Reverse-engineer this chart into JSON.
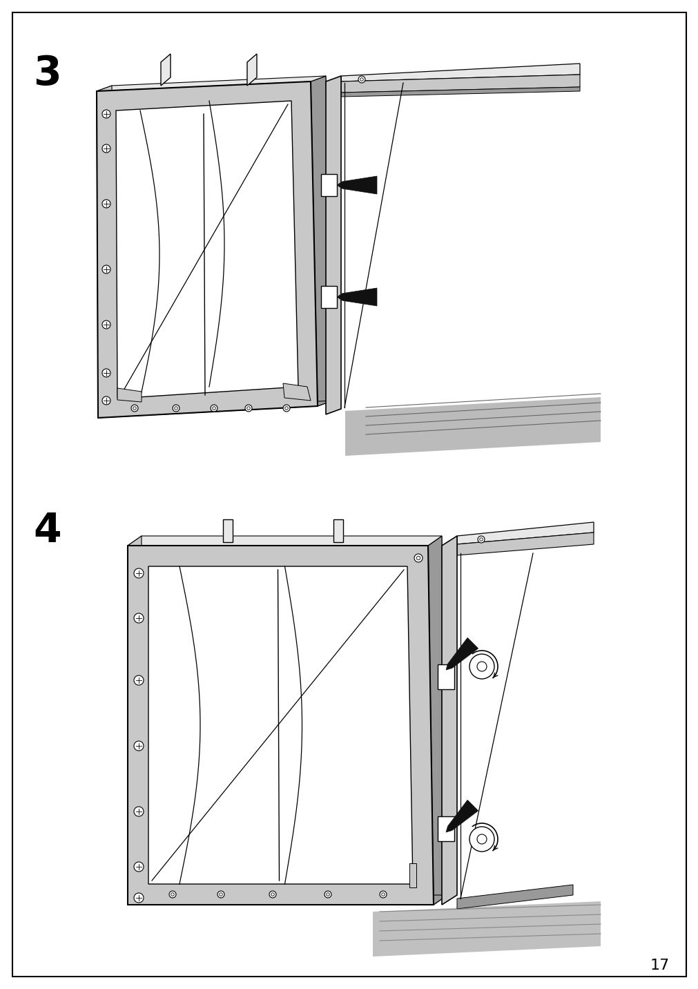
{
  "page_number": "17",
  "step3_label": "3",
  "step4_label": "4",
  "background_color": "#ffffff",
  "border_color": "#000000",
  "frame_fill": "#c8c8c8",
  "frame_dark": "#999999",
  "frame_light": "#e8e8e8",
  "line_color": "#000000",
  "arrow_color": "#111111",
  "label_fontsize": 42,
  "page_num_fontsize": 16
}
